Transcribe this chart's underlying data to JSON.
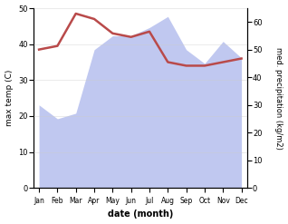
{
  "months": [
    "Jan",
    "Feb",
    "Mar",
    "Apr",
    "May",
    "Jun",
    "Jul",
    "Aug",
    "Sep",
    "Oct",
    "Nov",
    "Dec"
  ],
  "max_temp": [
    38.5,
    39.5,
    48.5,
    47.0,
    43.0,
    42.0,
    43.5,
    35.0,
    34.0,
    34.0,
    35.0,
    36.0
  ],
  "precipitation": [
    30,
    25,
    27,
    50,
    55,
    55,
    58,
    62,
    50,
    45,
    53,
    47
  ],
  "temp_color": "#b94a4a",
  "precip_fill_color": "#c0c8f0",
  "ylabel_left": "max temp (C)",
  "ylabel_right": "med. precipitation (kg/m2)",
  "xlabel": "date (month)",
  "ylim_left": [
    0,
    50
  ],
  "ylim_right": [
    0,
    65
  ],
  "yticks_left": [
    0,
    10,
    20,
    30,
    40,
    50
  ],
  "yticks_right": [
    0,
    10,
    20,
    30,
    40,
    50,
    60
  ],
  "bg_color": "#ffffff",
  "temp_linewidth": 1.8,
  "precip_alpha": 1.0
}
